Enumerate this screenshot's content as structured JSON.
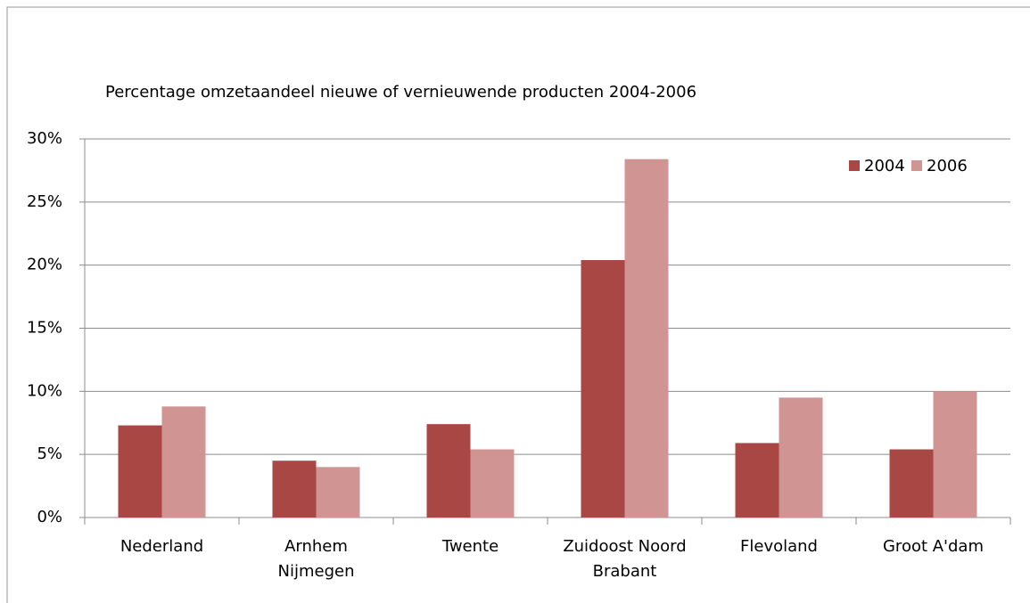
{
  "chart_data": {
    "type": "bar",
    "title": "Percentage omzetaandeel nieuwe of vernieuwende producten 2004-2006",
    "categories": [
      "Nederland",
      "Arnhem\nNijmegen",
      "Twente",
      "Zuidoost Noord\nBrabant",
      "Flevoland",
      "Groot A'dam"
    ],
    "series": [
      {
        "name": "2004",
        "color": "#a94744",
        "values": [
          7.3,
          4.5,
          7.4,
          20.4,
          5.9,
          5.4
        ]
      },
      {
        "name": "2006",
        "color": "#d09493",
        "values": [
          8.8,
          4.0,
          5.4,
          28.4,
          9.5,
          10.0
        ]
      }
    ],
    "ylim": [
      0,
      30
    ],
    "yticks": [
      {
        "value": 0,
        "label": "0%"
      },
      {
        "value": 5,
        "label": "5%"
      },
      {
        "value": 10,
        "label": "10%"
      },
      {
        "value": 15,
        "label": "15%"
      },
      {
        "value": 20,
        "label": "20%"
      },
      {
        "value": 25,
        "label": "25%"
      },
      {
        "value": 30,
        "label": "30%"
      }
    ],
    "grid": true,
    "legend": "top-right"
  }
}
